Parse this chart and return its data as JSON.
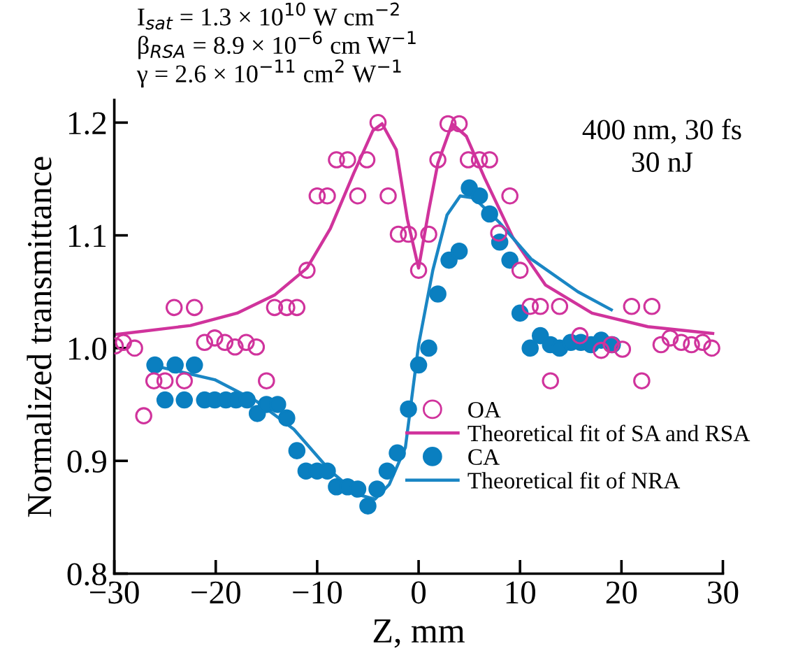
{
  "chart_data": {
    "type": "scatter",
    "xlabel": "Z, mm",
    "ylabel": "Normalized transmittance",
    "xlim": [
      -30,
      30
    ],
    "xticks": [
      {
        "value": -30,
        "label": "−30"
      },
      {
        "value": -20,
        "label": "−20"
      },
      {
        "value": -10,
        "label": "−10"
      },
      0,
      10,
      20,
      30
    ],
    "ylim": [
      0.8,
      1.22
    ],
    "yticks": [
      0.8,
      0.9,
      {
        "value": 1.0,
        "label": "1.0"
      },
      1.1,
      1.2
    ],
    "grid": false,
    "legend": "bottom right",
    "annotations": [
      "I$_{sat}$ = 1.3 × 10$^{10}$ W cm$^{−2}$\nβ$_{RSA}$ = 8.9 × 10$^{−6}$ cm W$^{−1}$\nγ = 2.6 × 10$^{−11}$ cm$^{2}$ W$^{−1}$",
      "400 nm, 30 fs\n30 nJ"
    ],
    "series": [
      {
        "name": "OA",
        "marker": "circle",
        "color": "#d0339c",
        "x": [
          -29.9,
          -29.1,
          -28.0,
          -27.1,
          -26.1,
          -25.0,
          -23.1,
          -24.1,
          -22.1,
          -21.1,
          -20.1,
          -19.1,
          -18.1,
          -17.0,
          -16.0,
          -15.0,
          -14.2,
          -13.0,
          -12.0,
          -11.0,
          -10.0,
          -9.0,
          -8.1,
          -7.0,
          -6.0,
          -5.1,
          -4.0,
          -3.0,
          -2.0,
          -1.0,
          0.0,
          1.0,
          1.9,
          2.9,
          4.0,
          4.9,
          6.0,
          7.0,
          7.9,
          9.0,
          10.0,
          11.0,
          12.0,
          13.9,
          13.0,
          15.9,
          18.0,
          19.0,
          20.1,
          21.0,
          23.0,
          22.0,
          23.9,
          24.8,
          25.9,
          26.9,
          28.0,
          28.9
        ],
        "values": [
          1.002,
          1.005,
          1.0,
          0.94,
          0.971,
          0.971,
          0.971,
          1.036,
          1.036,
          1.005,
          1.009,
          1.005,
          1.001,
          1.005,
          1.001,
          0.971,
          1.036,
          1.036,
          1.036,
          1.069,
          1.135,
          1.135,
          1.167,
          1.167,
          1.135,
          1.167,
          1.2,
          1.135,
          1.101,
          1.101,
          1.069,
          1.101,
          1.167,
          1.199,
          1.199,
          1.167,
          1.167,
          1.167,
          1.102,
          1.135,
          1.069,
          1.037,
          1.037,
          1.037,
          0.971,
          1.011,
          0.998,
          1.003,
          0.999,
          1.037,
          1.037,
          0.971,
          1.003,
          1.009,
          1.005,
          1.003,
          1.005,
          1.0
        ]
      },
      {
        "name": "Theoretical fit of SA and RSA",
        "type": "line",
        "marker": "none",
        "color": "#d0339c",
        "x": [
          -29.9,
          -22.5,
          -17.9,
          -14.2,
          -11.0,
          -8.7,
          -6.4,
          -4.5,
          -3.6,
          -2.2,
          -1.1,
          0.0,
          1.0,
          1.9,
          3.3,
          4.7,
          6.5,
          9.3,
          12.5,
          17.1,
          22.6,
          29.0
        ],
        "values": [
          1.012,
          1.02,
          1.031,
          1.047,
          1.071,
          1.106,
          1.155,
          1.193,
          1.199,
          1.176,
          1.114,
          1.071,
          1.122,
          1.164,
          1.199,
          1.188,
          1.151,
          1.098,
          1.056,
          1.031,
          1.019,
          1.013
        ]
      },
      {
        "name": "CA",
        "marker": "circle",
        "color": "#0a7fc0",
        "x": [
          -26.0,
          -24.0,
          -22.1,
          -25.0,
          -23.1,
          -21.1,
          -20.1,
          -19.0,
          -18.0,
          -16.9,
          -15.9,
          -15.0,
          -13.9,
          -13.0,
          -12.0,
          -11.1,
          -10.0,
          -9.0,
          -8.1,
          -7.0,
          -6.0,
          -5.0,
          -4.1,
          -3.1,
          -2.1,
          -1.0,
          0.0,
          1.0,
          1.9,
          3.0,
          4.0,
          5.0,
          6.0,
          7.0,
          8.0,
          9.0,
          10.0,
          11.0,
          12.0,
          13.0,
          13.9,
          15.0,
          16.0,
          17.0,
          18.0,
          19.1
        ],
        "values": [
          0.985,
          0.985,
          0.985,
          0.954,
          0.954,
          0.954,
          0.954,
          0.954,
          0.954,
          0.954,
          0.942,
          0.95,
          0.95,
          0.938,
          0.909,
          0.891,
          0.891,
          0.891,
          0.877,
          0.877,
          0.875,
          0.86,
          0.875,
          0.891,
          0.907,
          0.946,
          0.985,
          1.0,
          1.048,
          1.078,
          1.086,
          1.142,
          1.135,
          1.119,
          1.094,
          1.078,
          1.031,
          1.0,
          1.011,
          1.003,
          1.0,
          1.005,
          1.005,
          1.003,
          1.007,
          1.003
        ]
      },
      {
        "name": "Theoretical fit of NRA",
        "type": "line",
        "marker": "none",
        "color": "#1a86c4",
        "x": [
          -25.4,
          -20.1,
          -16.0,
          -12.3,
          -8.7,
          -5.9,
          -4.3,
          -2.9,
          -1.3,
          0.0,
          1.4,
          2.8,
          4.1,
          5.5,
          7.9,
          11.1,
          15.7,
          19.0
        ],
        "values": [
          0.983,
          0.972,
          0.953,
          0.928,
          0.891,
          0.87,
          0.866,
          0.879,
          0.912,
          1.003,
          1.069,
          1.118,
          1.135,
          1.133,
          1.112,
          1.079,
          1.05,
          1.034
        ]
      }
    ]
  }
}
